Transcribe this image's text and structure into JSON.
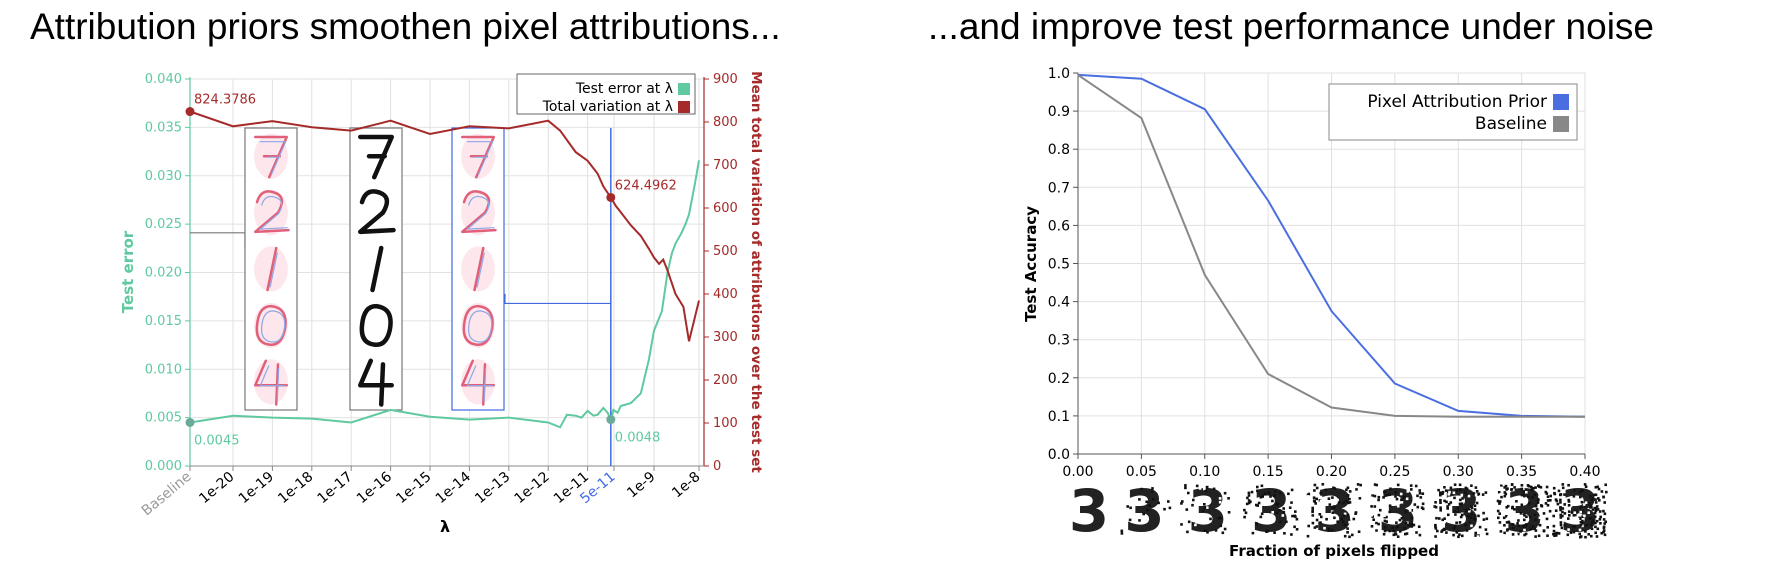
{
  "headings": {
    "left": "Attribution priors smoothen pixel attributions...",
    "right": "...and improve test performance under noise"
  },
  "colors": {
    "test_error": "#5fc99f",
    "total_variation": "#a52a2a",
    "selected": "#4169e1",
    "pap": "#4a6ee0",
    "baseline": "#888888"
  },
  "chart_data": [
    {
      "type": "line",
      "dual_axis": true,
      "x_scale": "log",
      "xlabel": "λ",
      "ylabel": "Test error",
      "y2label": "Mean total variation of attributions over the test set",
      "x_ticks": [
        "Baseline",
        "1e-20",
        "1e-19",
        "1e-18",
        "1e-17",
        "1e-16",
        "1e-15",
        "1e-14",
        "1e-13",
        "1e-12",
        "1e-11",
        "5e-11",
        "1e-9",
        "1e-8"
      ],
      "y_ticks": [
        "0.000",
        "0.005",
        "0.010",
        "0.015",
        "0.020",
        "0.025",
        "0.030",
        "0.035",
        "0.040"
      ],
      "y2_ticks": [
        "0",
        "100",
        "200",
        "300",
        "400",
        "500",
        "600",
        "700",
        "800",
        "900"
      ],
      "ylim": [
        0,
        0.04
      ],
      "y2lim": [
        0,
        900
      ],
      "grid": true,
      "legend_position": "top-right",
      "series": [
        {
          "name": "Test error at λ",
          "axis": "left",
          "points": [
            [
              "Baseline",
              0.0045
            ],
            [
              "1e-20",
              0.0052
            ],
            [
              "1e-19",
              0.005
            ],
            [
              "1e-18",
              0.0049
            ],
            [
              "1e-17",
              0.0045
            ],
            [
              "1e-16",
              0.0058
            ],
            [
              "1e-15",
              0.0051
            ],
            [
              "1e-14",
              0.0048
            ],
            [
              "1e-13",
              0.005
            ],
            [
              "1e-12",
              0.0045
            ],
            [
              "2e-12",
              0.004
            ],
            [
              "3e-12",
              0.0053
            ],
            [
              "5e-12",
              0.0052
            ],
            [
              "7e-12",
              0.005
            ],
            [
              "1e-11",
              0.0057
            ],
            [
              "1.5e-11",
              0.0052
            ],
            [
              "2e-11",
              0.0053
            ],
            [
              "3e-11",
              0.006
            ],
            [
              "4e-11",
              0.0055
            ],
            [
              "5e-11",
              0.0048
            ],
            [
              "6e-11",
              0.0058
            ],
            [
              "8e-11",
              0.0055
            ],
            [
              "1e-10",
              0.0062
            ],
            [
              "2e-10",
              0.0065
            ],
            [
              "4e-10",
              0.0075
            ],
            [
              "7e-10",
              0.011
            ],
            [
              "1e-9",
              0.014
            ],
            [
              "1.5e-9",
              0.016
            ],
            [
              "2e-9",
              0.02
            ],
            [
              "2.5e-9",
              0.022
            ],
            [
              "3e-9",
              0.023
            ],
            [
              "4e-9",
              0.024
            ],
            [
              "5e-9",
              0.025
            ],
            [
              "6e-9",
              0.026
            ],
            [
              "8e-9",
              0.029
            ],
            [
              "1e-8",
              0.0316
            ]
          ]
        },
        {
          "name": "Total variation at λ",
          "axis": "right",
          "points": [
            [
              "Baseline",
              824.38
            ],
            [
              "1e-20",
              790
            ],
            [
              "1e-19",
              802
            ],
            [
              "1e-18",
              788
            ],
            [
              "1e-17",
              780
            ],
            [
              "1e-16",
              803
            ],
            [
              "1e-15",
              772
            ],
            [
              "1e-14",
              790
            ],
            [
              "1e-13",
              785
            ],
            [
              "1e-12",
              803
            ],
            [
              "2e-12",
              780
            ],
            [
              "5e-12",
              730
            ],
            [
              "1e-11",
              710
            ],
            [
              "2e-11",
              680
            ],
            [
              "3e-11",
              650
            ],
            [
              "5e-11",
              624.5
            ],
            [
              "7e-11",
              605
            ],
            [
              "1e-10",
              590
            ],
            [
              "2e-10",
              560
            ],
            [
              "4e-10",
              535
            ],
            [
              "7e-10",
              505
            ],
            [
              "1e-9",
              485
            ],
            [
              "1.3e-9",
              470
            ],
            [
              "1.6e-9",
              480
            ],
            [
              "2e-9",
              455
            ],
            [
              "3e-9",
              400
            ],
            [
              "4.5e-9",
              370
            ],
            [
              "6e-9",
              290
            ],
            [
              "1e-8",
              385
            ]
          ]
        }
      ],
      "annotations": [
        {
          "label": "824.3786",
          "x": "Baseline",
          "value": 824.3786,
          "axis": "right"
        },
        {
          "label": "0.0045",
          "x": "Baseline",
          "value": 0.0045,
          "axis": "left"
        },
        {
          "label": "624.4962",
          "x": "5e-11",
          "value": 624.4962,
          "axis": "right"
        },
        {
          "label": "0.0048",
          "x": "5e-11",
          "value": 0.0048,
          "axis": "left"
        }
      ],
      "selected_x": "5e-11",
      "insets": [
        {
          "at": "Baseline",
          "digits": [
            "7",
            "2",
            "1",
            "0",
            "4"
          ],
          "style": "attribution map"
        },
        {
          "at": "1e-16",
          "digits": [
            "7",
            "2",
            "1",
            "0",
            "4"
          ],
          "style": "input images"
        },
        {
          "at": "5e-11",
          "digits": [
            "7",
            "2",
            "1",
            "0",
            "4"
          ],
          "style": "attribution map"
        }
      ]
    },
    {
      "type": "line",
      "xlabel": "Fraction of pixels flipped",
      "ylabel": "Test Accuracy",
      "x_ticks": [
        "0.00",
        "0.05",
        "0.10",
        "0.15",
        "0.20",
        "0.25",
        "0.30",
        "0.35",
        "0.40"
      ],
      "y_ticks": [
        "0.0",
        "0.1",
        "0.2",
        "0.3",
        "0.4",
        "0.5",
        "0.6",
        "0.7",
        "0.8",
        "0.9",
        "1.0"
      ],
      "xlim": [
        0,
        0.4
      ],
      "ylim": [
        0,
        1.0
      ],
      "grid": true,
      "legend_position": "top-right",
      "series": [
        {
          "name": "Pixel Attribution Prior",
          "x": [
            0,
            0.05,
            0.1,
            0.15,
            0.2,
            0.25,
            0.3,
            0.35,
            0.4
          ],
          "values": [
            0.995,
            0.985,
            0.905,
            0.665,
            0.375,
            0.185,
            0.113,
            0.1,
            0.098
          ]
        },
        {
          "name": "Baseline",
          "x": [
            0,
            0.05,
            0.1,
            0.15,
            0.2,
            0.25,
            0.3,
            0.35,
            0.4
          ],
          "values": [
            0.995,
            0.882,
            0.47,
            0.21,
            0.122,
            0.1,
            0.098,
            0.098,
            0.098
          ]
        }
      ],
      "noise_strip": {
        "digit": "3",
        "fractions": [
          0,
          0.05,
          0.1,
          0.15,
          0.2,
          0.25,
          0.3,
          0.35,
          0.4
        ]
      }
    }
  ]
}
